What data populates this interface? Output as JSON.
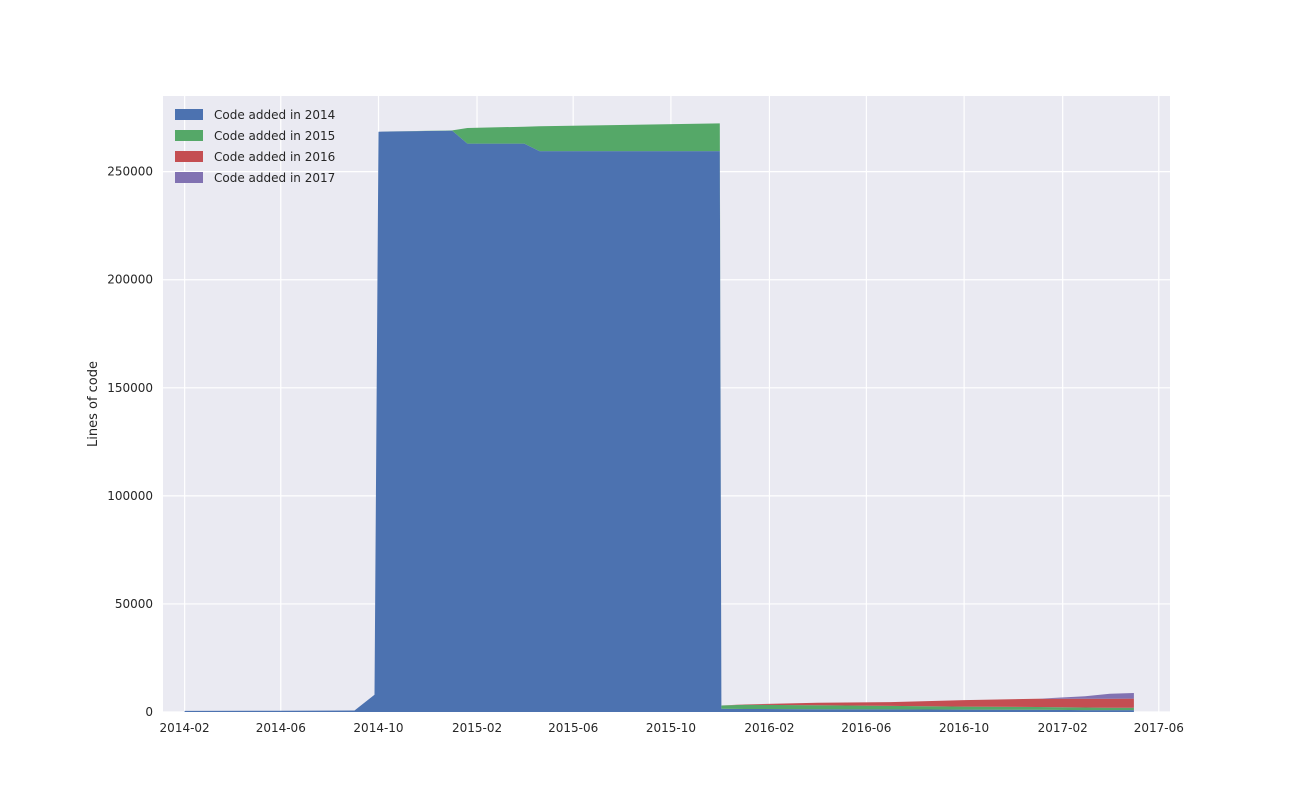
{
  "chart_data": {
    "type": "area",
    "stacked": true,
    "title": "",
    "xlabel": "",
    "ylabel": "Lines of code",
    "x_ticks": [
      "2014-02",
      "2014-06",
      "2014-10",
      "2015-02",
      "2015-06",
      "2015-10",
      "2016-02",
      "2016-06",
      "2016-10",
      "2017-02",
      "2017-06"
    ],
    "y_ticks": [
      0,
      50000,
      100000,
      150000,
      200000,
      250000
    ],
    "ylim": [
      0,
      285000
    ],
    "xlim": [
      "2014-01-05",
      "2017-06-15"
    ],
    "grid": true,
    "legend_position": "top-left",
    "x": [
      "2014-02-01",
      "2014-06-01",
      "2014-09-01",
      "2014-09-26",
      "2014-10-01",
      "2015-01-01",
      "2015-01-20",
      "2015-04-01",
      "2015-04-20",
      "2015-12-01",
      "2015-12-03",
      "2016-01-01",
      "2016-04-01",
      "2016-07-01",
      "2016-10-01",
      "2017-01-01",
      "2017-03-01",
      "2017-04-01",
      "2017-05-01"
    ],
    "series": [
      {
        "name": "Code added in 2014",
        "color": "#4C72B0",
        "values": [
          500,
          600,
          700,
          8000,
          268500,
          269000,
          263000,
          263000,
          259500,
          259500,
          1500,
          1400,
          1300,
          1200,
          1100,
          1000,
          900,
          900,
          900
        ]
      },
      {
        "name": "Code added in 2015",
        "color": "#55A868",
        "values": [
          0,
          0,
          0,
          0,
          0,
          100,
          7200,
          7800,
          11500,
          12800,
          1500,
          2000,
          1800,
          1600,
          1400,
          1300,
          1200,
          1100,
          1100
        ]
      },
      {
        "name": "Code added in 2016",
        "color": "#C44E52",
        "values": [
          0,
          0,
          0,
          0,
          0,
          0,
          0,
          0,
          0,
          0,
          0,
          100,
          1200,
          1800,
          3000,
          3800,
          4000,
          4100,
          4200
        ]
      },
      {
        "name": "Code added in 2017",
        "color": "#8172B2",
        "values": [
          0,
          0,
          0,
          0,
          0,
          0,
          0,
          0,
          0,
          0,
          0,
          0,
          0,
          0,
          0,
          0,
          1200,
          2300,
          2600
        ]
      }
    ]
  }
}
